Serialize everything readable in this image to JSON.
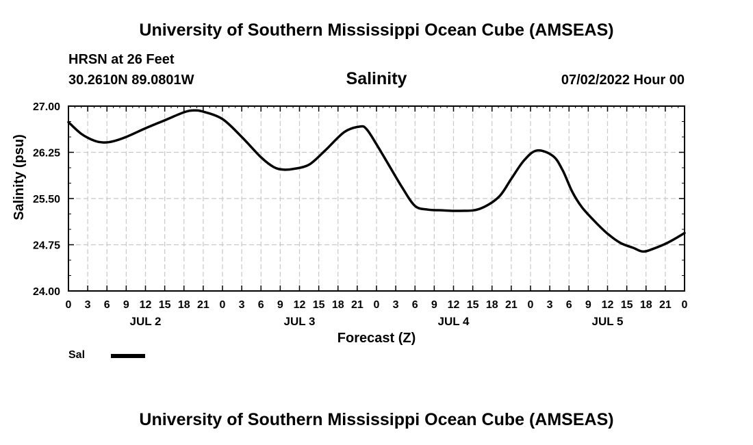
{
  "header": {
    "title": "University of Southern Mississippi Ocean Cube (AMSEAS)",
    "station": "HRSN at 26 Feet",
    "coords": "30.2610N  89.0801W",
    "run_time": "07/02/2022 Hour 00"
  },
  "footer": {
    "title": "University of Southern Mississippi Ocean Cube (AMSEAS)"
  },
  "legend": {
    "label": "Sal",
    "color": "#000000"
  },
  "chart_data": {
    "type": "line",
    "title": "Salinity",
    "xlabel": "Forecast (Z)",
    "ylabel": "Salinity (psu)",
    "ylim": [
      24.0,
      27.0
    ],
    "xlim": [
      0,
      96
    ],
    "grid": true,
    "y_ticks": [
      "24.00",
      "24.75",
      "25.50",
      "26.25",
      "27.00"
    ],
    "y_tick_values": [
      24.0,
      24.75,
      25.5,
      26.25,
      27.0
    ],
    "x_tick_hours": [
      0,
      3,
      6,
      9,
      12,
      15,
      18,
      21,
      24,
      27,
      30,
      33,
      36,
      39,
      42,
      45,
      48,
      51,
      54,
      57,
      60,
      63,
      66,
      69,
      72,
      75,
      78,
      81,
      84,
      87,
      90,
      93,
      96
    ],
    "x_tick_labels": [
      "0",
      "3",
      "6",
      "9",
      "12",
      "15",
      "18",
      "21",
      "0",
      "3",
      "6",
      "9",
      "12",
      "15",
      "18",
      "21",
      "0",
      "3",
      "6",
      "9",
      "12",
      "15",
      "18",
      "21",
      "0",
      "3",
      "6",
      "9",
      "12",
      "15",
      "18",
      "21",
      "0"
    ],
    "day_labels": [
      {
        "label": "JUL 2",
        "hour": 12
      },
      {
        "label": "JUL 3",
        "hour": 36
      },
      {
        "label": "JUL 4",
        "hour": 60
      },
      {
        "label": "JUL 5",
        "hour": 84
      }
    ],
    "series": [
      {
        "name": "Sal",
        "x": [
          0,
          2,
          4,
          5.5,
          7,
          9,
          12,
          15,
          18,
          19.5,
          21,
          24,
          27,
          30,
          32,
          33.5,
          35,
          37.5,
          40,
          43,
          45.5,
          46.5,
          48,
          50,
          52,
          54,
          56,
          58,
          61,
          64,
          67,
          69,
          71,
          73,
          75.5,
          77,
          78.5,
          80,
          82,
          84,
          86,
          88,
          89.5,
          91,
          93.5,
          96
        ],
        "values": [
          26.74,
          26.55,
          26.44,
          26.41,
          26.43,
          26.5,
          26.64,
          26.77,
          26.9,
          26.93,
          26.91,
          26.79,
          26.5,
          26.17,
          26.01,
          25.97,
          25.98,
          26.05,
          26.28,
          26.58,
          26.67,
          26.62,
          26.38,
          26.03,
          25.68,
          25.38,
          25.32,
          25.31,
          25.3,
          25.33,
          25.52,
          25.82,
          26.12,
          26.28,
          26.19,
          25.96,
          25.61,
          25.36,
          25.13,
          24.93,
          24.78,
          24.7,
          24.64,
          24.68,
          24.79,
          24.94
        ]
      }
    ]
  }
}
